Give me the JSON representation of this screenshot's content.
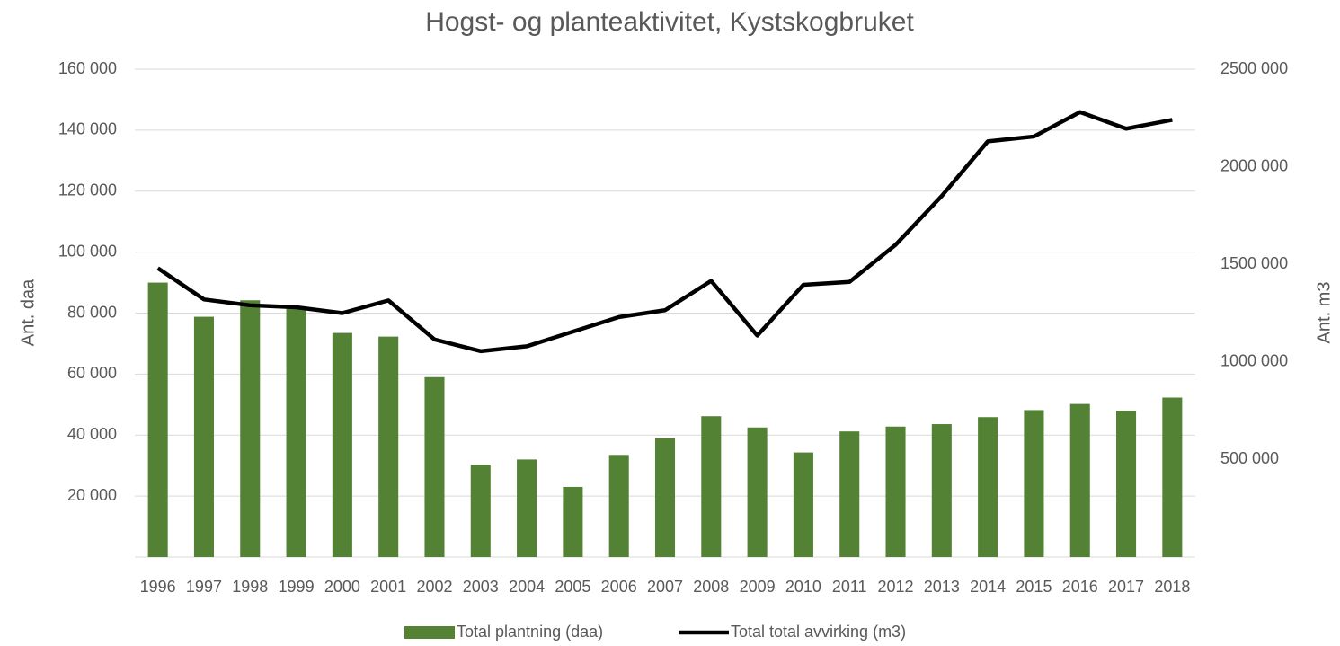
{
  "chart_data": {
    "type": "bar-line",
    "title": "Hogst- og planteaktivitet, Kystskogbruket",
    "ylabel": "Ant. daa",
    "y2label": "Ant. m3",
    "categories": [
      "1996",
      "1997",
      "1998",
      "1999",
      "2000",
      "2001",
      "2002",
      "2003",
      "2004",
      "2005",
      "2006",
      "2007",
      "2008",
      "2009",
      "2010",
      "2011",
      "2012",
      "2013",
      "2014",
      "2015",
      "2016",
      "2017",
      "2018"
    ],
    "series": [
      {
        "name": "Total plantning (daa)",
        "type": "bar",
        "color": "#548235",
        "axis": "y",
        "values": [
          90000,
          78800,
          84200,
          82000,
          73500,
          72300,
          59000,
          30300,
          32000,
          23000,
          33500,
          39000,
          46200,
          42500,
          34300,
          41200,
          42800,
          43600,
          45900,
          48200,
          50200,
          48000,
          52300
        ]
      },
      {
        "name": "Total total avvirking (m3)",
        "type": "line",
        "color": "#000000",
        "axis": "y2",
        "values": [
          1480000,
          1320000,
          1290000,
          1280000,
          1250000,
          1315000,
          1115000,
          1055000,
          1080000,
          1155000,
          1230000,
          1265000,
          1415000,
          1135000,
          1395000,
          1410000,
          1600000,
          1850000,
          2130000,
          2155000,
          2280000,
          2195000,
          2240000
        ]
      }
    ],
    "ylim": [
      0,
      160000
    ],
    "yticks": [
      {
        "value": 20000,
        "label": "20 000"
      },
      {
        "value": 40000,
        "label": "40 000"
      },
      {
        "value": 60000,
        "label": "60 000"
      },
      {
        "value": 80000,
        "label": "80 000"
      },
      {
        "value": 100000,
        "label": "100 000"
      },
      {
        "value": 120000,
        "label": "120 000"
      },
      {
        "value": 140000,
        "label": "140 000"
      },
      {
        "value": 160000,
        "label": "160 000"
      }
    ],
    "y2lim": [
      0,
      2500000
    ],
    "y2ticks": [
      {
        "value": 500000,
        "label": "500 000"
      },
      {
        "value": 1000000,
        "label": "1000 000"
      },
      {
        "value": 1500000,
        "label": "1500 000"
      },
      {
        "value": 2000000,
        "label": "2000 000"
      },
      {
        "value": 2500000,
        "label": "2500 000"
      }
    ],
    "grid": true,
    "legend": "bottom"
  }
}
